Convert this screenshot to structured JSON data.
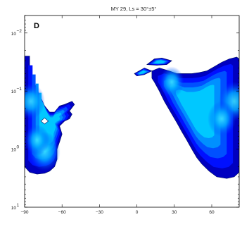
{
  "chart_data": {
    "type": "contour",
    "title": "MY 29, Ls = 30°±5°",
    "panel_label": "D",
    "xlabel": "",
    "ylabel": "",
    "x_ticks": [
      -90,
      -60,
      -30,
      0,
      30,
      60
    ],
    "x_tick_labels": [
      "-90",
      "-60",
      "-30",
      "0",
      "30",
      "60"
    ],
    "xlim": [
      -90,
      82
    ],
    "y_scale": "log",
    "y_direction": "downward-increasing",
    "ylim": [
      0.005,
      10
    ],
    "y_ticks": [
      0.01,
      0.1,
      1,
      10
    ],
    "y_tick_labels": [
      {
        "base": "10",
        "exp": "-2"
      },
      {
        "base": "10",
        "exp": "-1"
      },
      {
        "base": "10",
        "exp": "0"
      },
      {
        "base": "10",
        "exp": "1"
      }
    ],
    "colormap": [
      "#00007f",
      "#0000c0",
      "#0010ff",
      "#0050ff",
      "#0090ff",
      "#00c8ff",
      "#40f0ff"
    ],
    "regions": [
      {
        "name": "southern",
        "outline": [
          [
            -90,
            0.025
          ],
          [
            -86,
            0.025
          ],
          [
            -86,
            0.05
          ],
          [
            -82,
            0.07
          ],
          [
            -80,
            0.1
          ],
          [
            -77,
            0.13
          ],
          [
            -74,
            0.18
          ],
          [
            -70,
            0.23
          ],
          [
            -66,
            0.23
          ],
          [
            -62,
            0.18
          ],
          [
            -58,
            0.17
          ],
          [
            -52,
            0.15
          ],
          [
            -50,
            0.17
          ],
          [
            -54,
            0.22
          ],
          [
            -52,
            0.25
          ],
          [
            -54,
            0.3
          ],
          [
            -58,
            0.33
          ],
          [
            -62,
            0.4
          ],
          [
            -60,
            0.55
          ],
          [
            -62,
            0.75
          ],
          [
            -64,
            1.0
          ],
          [
            -64,
            1.5
          ],
          [
            -66,
            2.0
          ],
          [
            -70,
            2.4
          ],
          [
            -74,
            2.6
          ],
          [
            -80,
            2.7
          ],
          [
            -86,
            2.5
          ],
          [
            -90,
            2.0
          ]
        ],
        "hole": [
          [
            -77,
            0.33
          ],
          [
            -74,
            0.29
          ],
          [
            -71,
            0.33
          ],
          [
            -74,
            0.37
          ]
        ],
        "cores": [
          {
            "lon": -85,
            "p": 0.15,
            "level": 5
          },
          {
            "lon": -74,
            "p": 1.1,
            "level": 6
          },
          {
            "lon": -80,
            "p": 0.7,
            "level": 4
          }
        ]
      },
      {
        "name": "northern",
        "outline": [
          [
            12,
            0.045
          ],
          [
            18,
            0.04
          ],
          [
            26,
            0.045
          ],
          [
            32,
            0.05
          ],
          [
            38,
            0.05
          ],
          [
            44,
            0.05
          ],
          [
            50,
            0.048
          ],
          [
            56,
            0.045
          ],
          [
            62,
            0.038
          ],
          [
            68,
            0.032
          ],
          [
            74,
            0.028
          ],
          [
            80,
            0.026
          ],
          [
            82,
            0.028
          ],
          [
            82,
            2.5
          ],
          [
            78,
            3.0
          ],
          [
            72,
            3.2
          ],
          [
            64,
            3.0
          ],
          [
            58,
            2.4
          ],
          [
            52,
            1.8
          ],
          [
            48,
            1.4
          ],
          [
            44,
            1.0
          ],
          [
            40,
            0.7
          ],
          [
            36,
            0.5
          ],
          [
            32,
            0.35
          ],
          [
            28,
            0.25
          ],
          [
            22,
            0.15
          ],
          [
            18,
            0.1
          ],
          [
            14,
            0.07
          ],
          [
            12,
            0.06
          ]
        ],
        "cores": [
          {
            "lon": 78,
            "p": 0.15,
            "level": 6
          },
          {
            "lon": 68,
            "p": 0.3,
            "level": 5
          },
          {
            "lon": 28,
            "p": 0.07,
            "level": 4
          }
        ]
      },
      {
        "name": "north-blob",
        "outline": [
          [
            8,
            0.035
          ],
          [
            14,
            0.028
          ],
          [
            20,
            0.027
          ],
          [
            28,
            0.03
          ],
          [
            24,
            0.035
          ],
          [
            16,
            0.036
          ]
        ],
        "cores": []
      },
      {
        "name": "north-top-left",
        "outline": [
          [
            -2,
            0.05
          ],
          [
            6,
            0.04
          ],
          [
            12,
            0.045
          ],
          [
            6,
            0.052
          ],
          [
            0,
            0.055
          ]
        ],
        "cores": []
      }
    ]
  }
}
